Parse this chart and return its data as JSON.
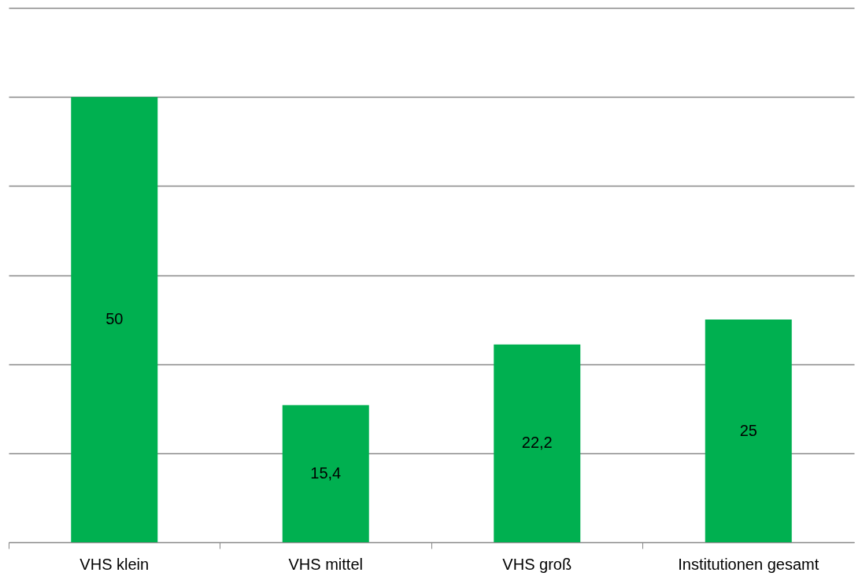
{
  "chart_data": {
    "type": "bar",
    "categories": [
      "VHS klein",
      "VHS mittel",
      "VHS groß",
      "Institutionen gesamt"
    ],
    "values": [
      50,
      15.4,
      22.2,
      25
    ],
    "value_labels": [
      "50",
      "15,4",
      "22,2",
      "25"
    ],
    "color": "#00b050",
    "ylim": [
      0,
      60
    ],
    "yticks": [
      {
        "value": 0,
        "label": null
      },
      {
        "value": 10,
        "label": null
      },
      {
        "value": 20,
        "label": null
      },
      {
        "value": 30,
        "label": null
      },
      {
        "value": 40,
        "label": null
      },
      {
        "value": 50,
        "label": null
      },
      {
        "value": 60,
        "label": null
      }
    ],
    "grid": "y",
    "tick_labels": "x"
  }
}
